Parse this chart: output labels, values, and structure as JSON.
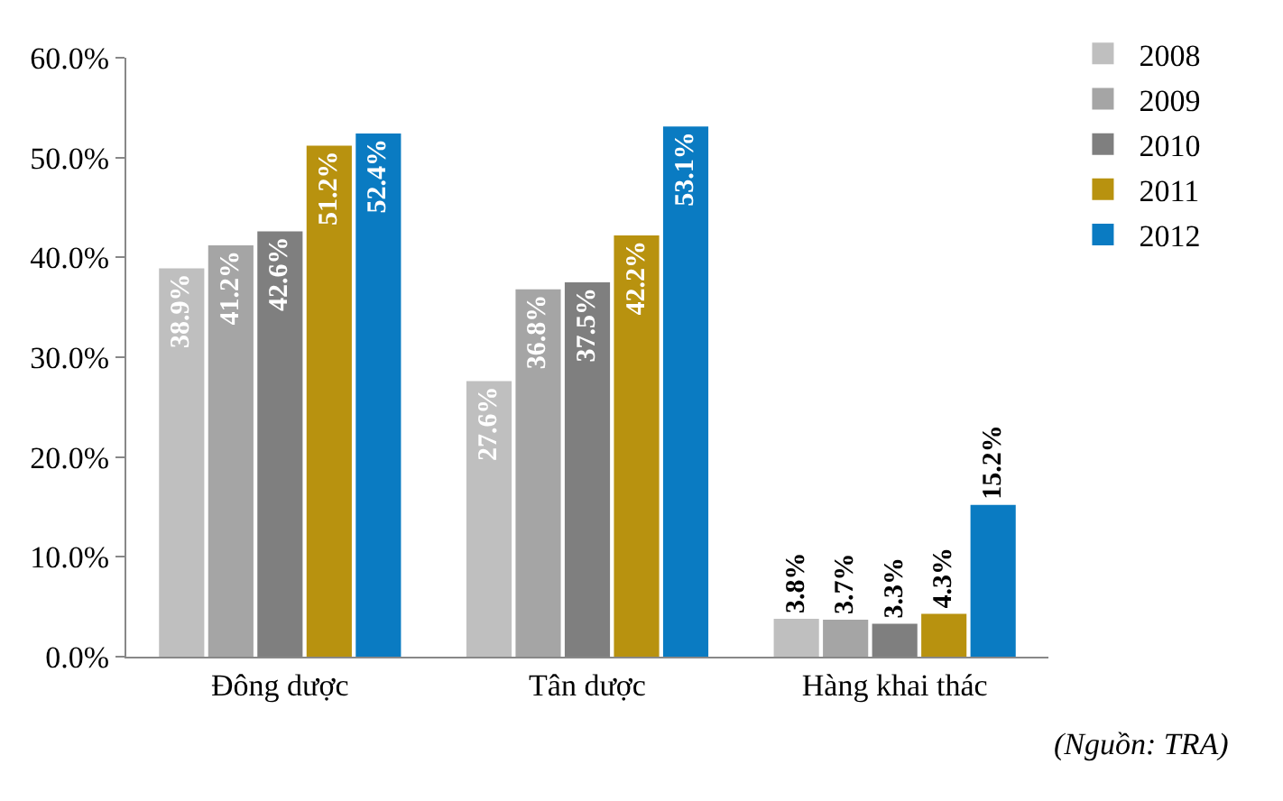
{
  "chart_data": {
    "type": "bar",
    "categories": [
      "Đông dược",
      "Tân dược",
      "Hàng khai thác"
    ],
    "series": [
      {
        "name": "2008",
        "color": "#bfbfbf",
        "values": [
          38.9,
          27.6,
          3.8
        ],
        "value_labels": [
          "38.9%",
          "27.6%",
          "3.8%"
        ]
      },
      {
        "name": "2009",
        "color": "#a5a5a5",
        "values": [
          41.2,
          36.8,
          3.7
        ],
        "value_labels": [
          "41.2%",
          "36.8%",
          "3.7%"
        ]
      },
      {
        "name": "2010",
        "color": "#7f7f7f",
        "values": [
          42.6,
          37.5,
          3.3
        ],
        "value_labels": [
          "42.6%",
          "37.5%",
          "3.3%"
        ]
      },
      {
        "name": "2011",
        "color": "#b8920f",
        "values": [
          51.2,
          42.2,
          4.3
        ],
        "value_labels": [
          "51.2%",
          "42.2%",
          "4.3%"
        ]
      },
      {
        "name": "2012",
        "color": "#0a7bc2",
        "values": [
          52.4,
          53.1,
          15.2
        ],
        "value_labels": [
          "52.4%",
          "53.1%",
          "15.2%"
        ]
      }
    ],
    "ylim": [
      0,
      60
    ],
    "yticks": [
      {
        "value": 0,
        "label": "0.0%"
      },
      {
        "value": 10,
        "label": "10.0%"
      },
      {
        "value": 20,
        "label": "20.0%"
      },
      {
        "value": 30,
        "label": "30.0%"
      },
      {
        "value": 40,
        "label": "40.0%"
      },
      {
        "value": 50,
        "label": "50.0%"
      },
      {
        "value": 60,
        "label": "60.0%"
      }
    ],
    "legend": "right",
    "annotations": [
      "(Nguồn: TRA)"
    ]
  }
}
